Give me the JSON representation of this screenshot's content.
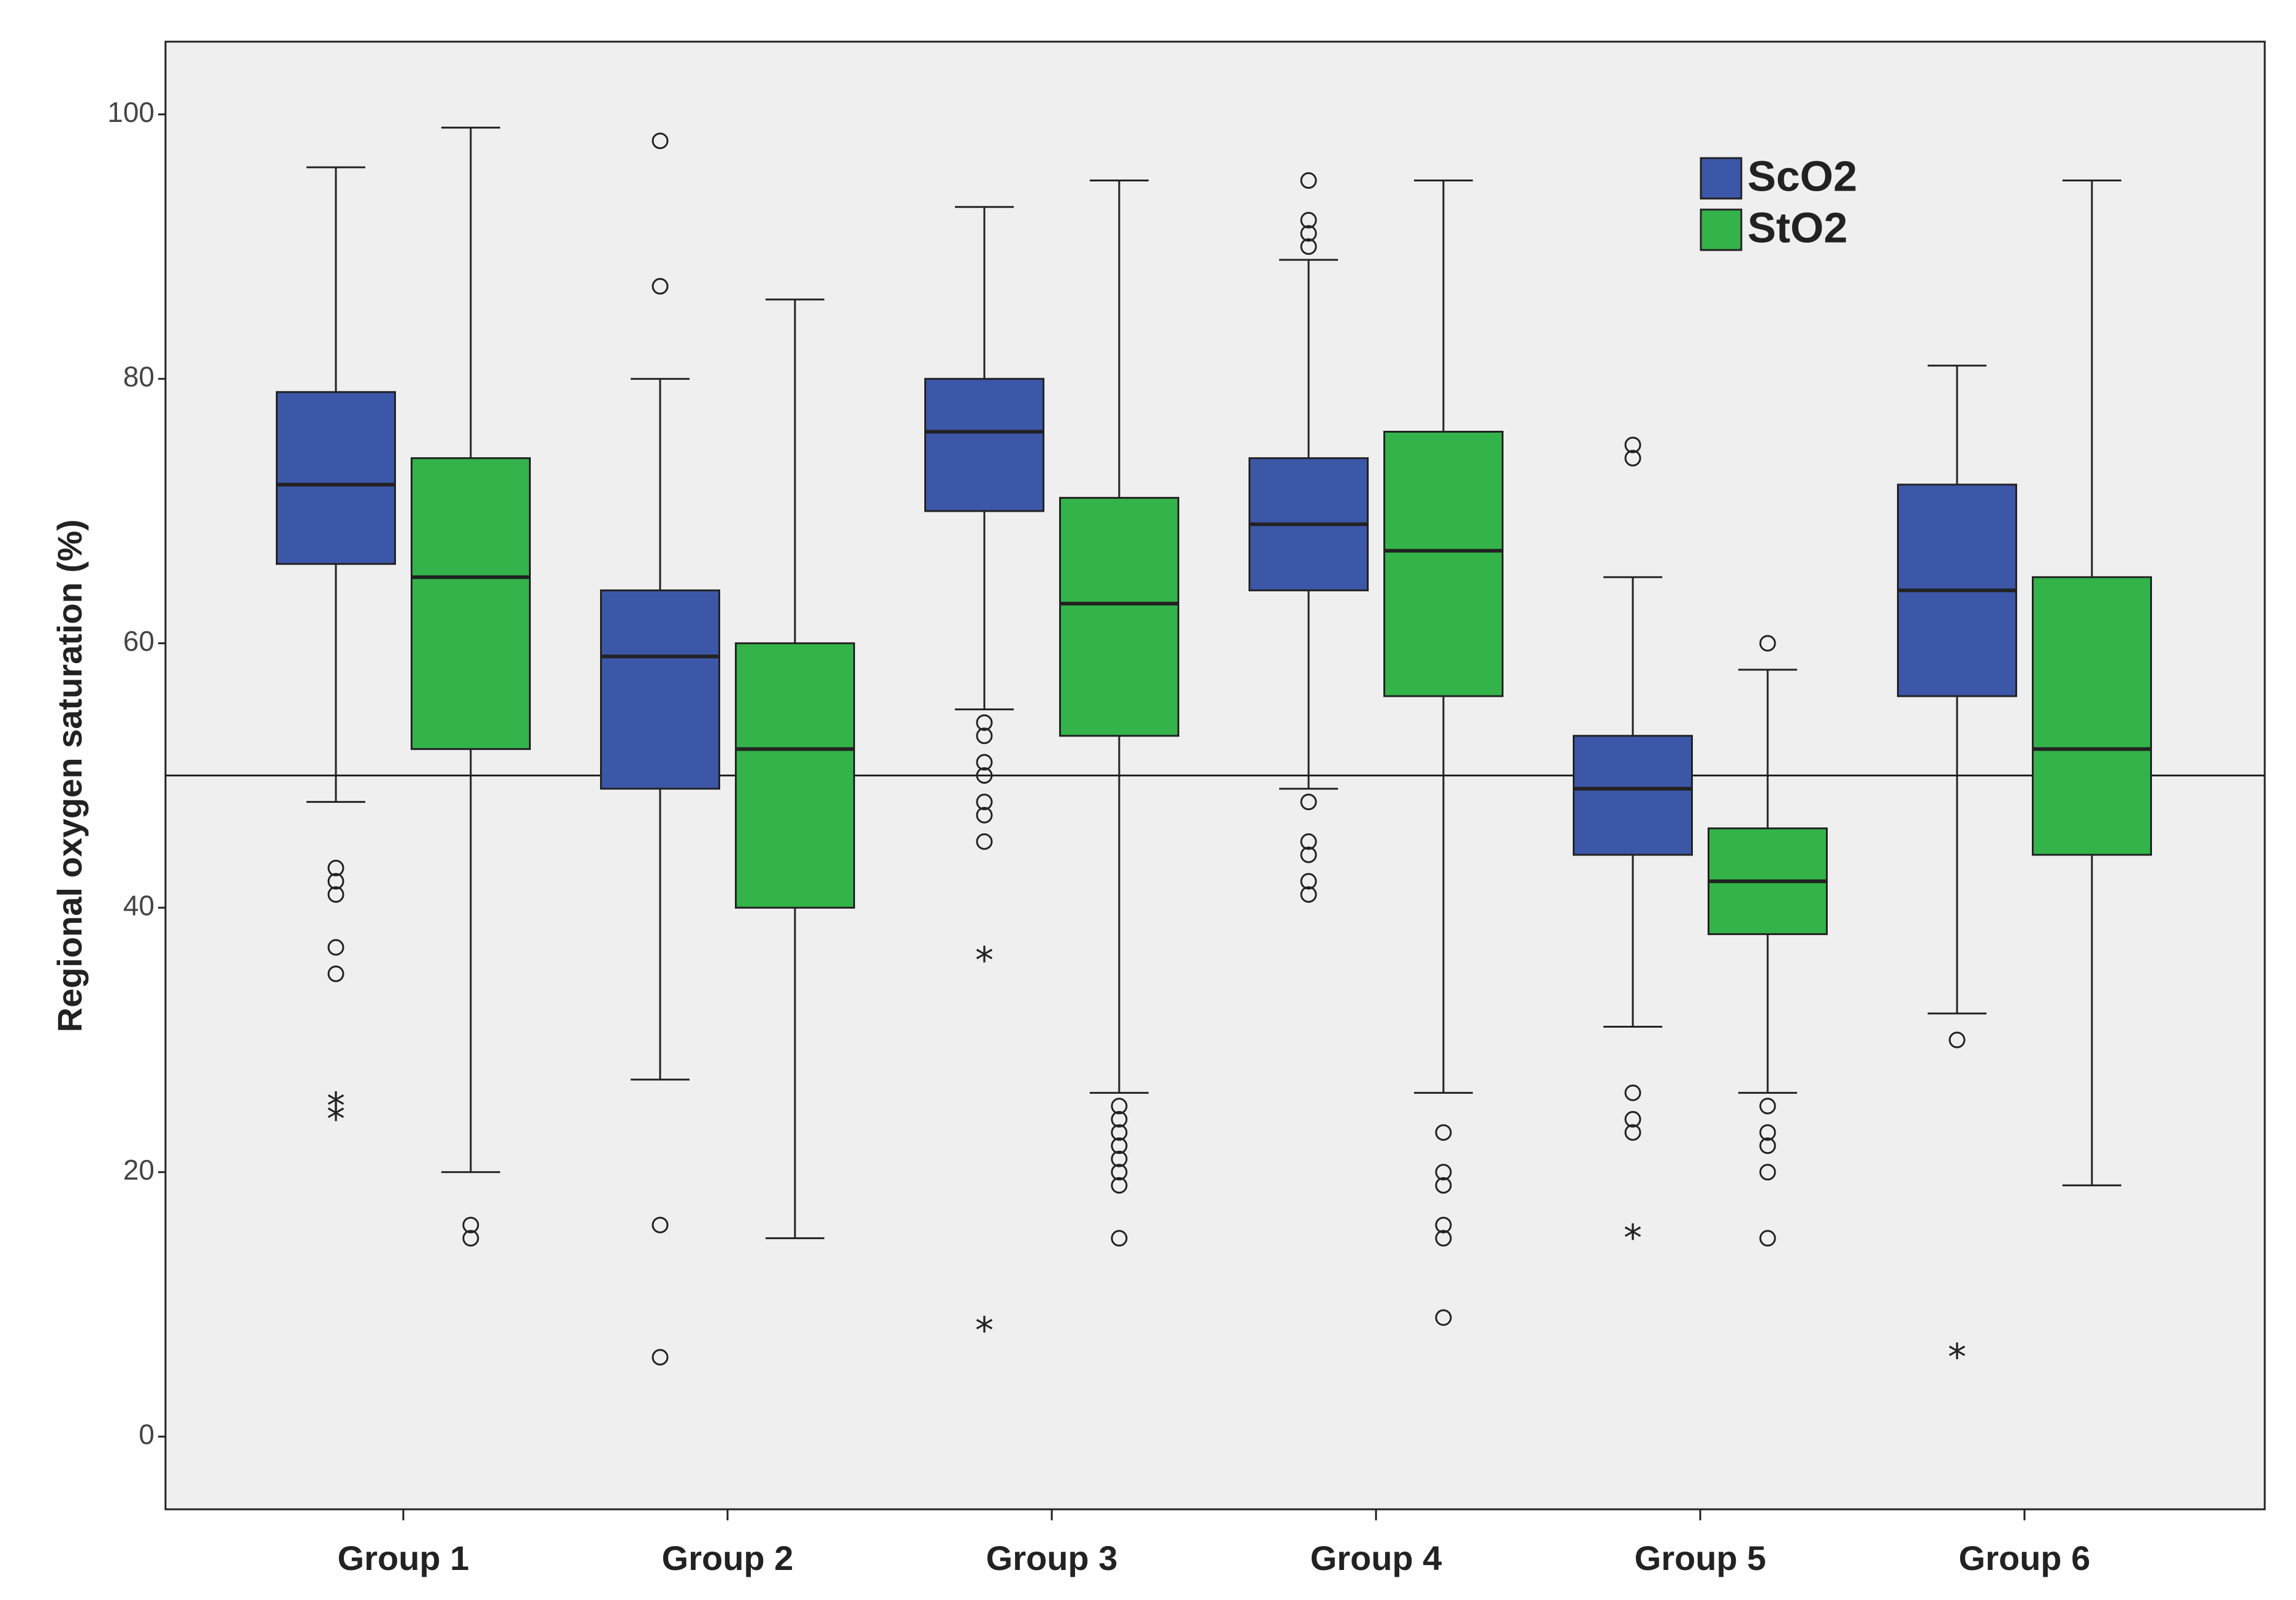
{
  "chart_data": {
    "type": "boxplot",
    "title": "",
    "xlabel": "",
    "ylabel": "Regional oxygen saturation (%)",
    "ylim": [
      -5.5,
      105.5
    ],
    "yticks": [
      "0",
      "20",
      "40",
      "60",
      "80",
      "100"
    ],
    "reference_line": 50,
    "grid": false,
    "legend_position": "top-right",
    "categories": [
      "Group 1",
      "Group 2",
      "Group 3",
      "Group 4",
      "Group 5",
      "Group 6"
    ],
    "series": [
      {
        "name": "ScO2",
        "color": "#3c57a8",
        "boxes": [
          {
            "whisker_low": 48,
            "q1": 66,
            "median": 72,
            "q3": 79,
            "whisker_high": 96,
            "outliers": [
              43,
              42,
              41,
              37,
              35
            ],
            "extremes": [
              25,
              24
            ]
          },
          {
            "whisker_low": 27,
            "q1": 49,
            "median": 59,
            "q3": 64,
            "whisker_high": 80,
            "outliers": [
              98,
              87,
              16,
              6
            ],
            "extremes": []
          },
          {
            "whisker_low": 55,
            "q1": 70,
            "median": 76,
            "q3": 80,
            "whisker_high": 93,
            "outliers": [
              54,
              53,
              51,
              50,
              48,
              47,
              45
            ],
            "extremes": [
              36,
              8
            ]
          },
          {
            "whisker_low": 49,
            "q1": 64,
            "median": 69,
            "q3": 74,
            "whisker_high": 89,
            "outliers": [
              95,
              92,
              91,
              90,
              48,
              45,
              44,
              42,
              41
            ],
            "extremes": []
          },
          {
            "whisker_low": 31,
            "q1": 44,
            "median": 49,
            "q3": 53,
            "whisker_high": 65,
            "outliers": [
              75,
              74,
              26,
              24,
              23
            ],
            "extremes": [
              15
            ]
          },
          {
            "whisker_low": 32,
            "q1": 56,
            "median": 64,
            "q3": 72,
            "whisker_high": 81,
            "outliers": [
              30
            ],
            "extremes": [
              6
            ]
          }
        ]
      },
      {
        "name": "StO2",
        "color": "#34b34a",
        "boxes": [
          {
            "whisker_low": 20,
            "q1": 52,
            "median": 65,
            "q3": 74,
            "whisker_high": 99,
            "outliers": [
              16,
              15
            ],
            "extremes": []
          },
          {
            "whisker_low": 15,
            "q1": 40,
            "median": 52,
            "q3": 60,
            "whisker_high": 86,
            "outliers": [],
            "extremes": []
          },
          {
            "whisker_low": 26,
            "q1": 53,
            "median": 63,
            "q3": 71,
            "whisker_high": 95,
            "outliers": [
              25,
              24,
              23,
              22,
              21,
              20,
              19,
              15
            ],
            "extremes": []
          },
          {
            "whisker_low": 26,
            "q1": 56,
            "median": 67,
            "q3": 76,
            "whisker_high": 95,
            "outliers": [
              23,
              20,
              19,
              16,
              15,
              9
            ],
            "extremes": []
          },
          {
            "whisker_low": 26,
            "q1": 38,
            "median": 42,
            "q3": 46,
            "whisker_high": 58,
            "outliers": [
              60,
              25,
              23,
              22,
              20,
              15
            ],
            "extremes": []
          },
          {
            "whisker_low": 19,
            "q1": 44,
            "median": 52,
            "q3": 65,
            "whisker_high": 95,
            "outliers": [],
            "extremes": []
          }
        ]
      }
    ]
  }
}
